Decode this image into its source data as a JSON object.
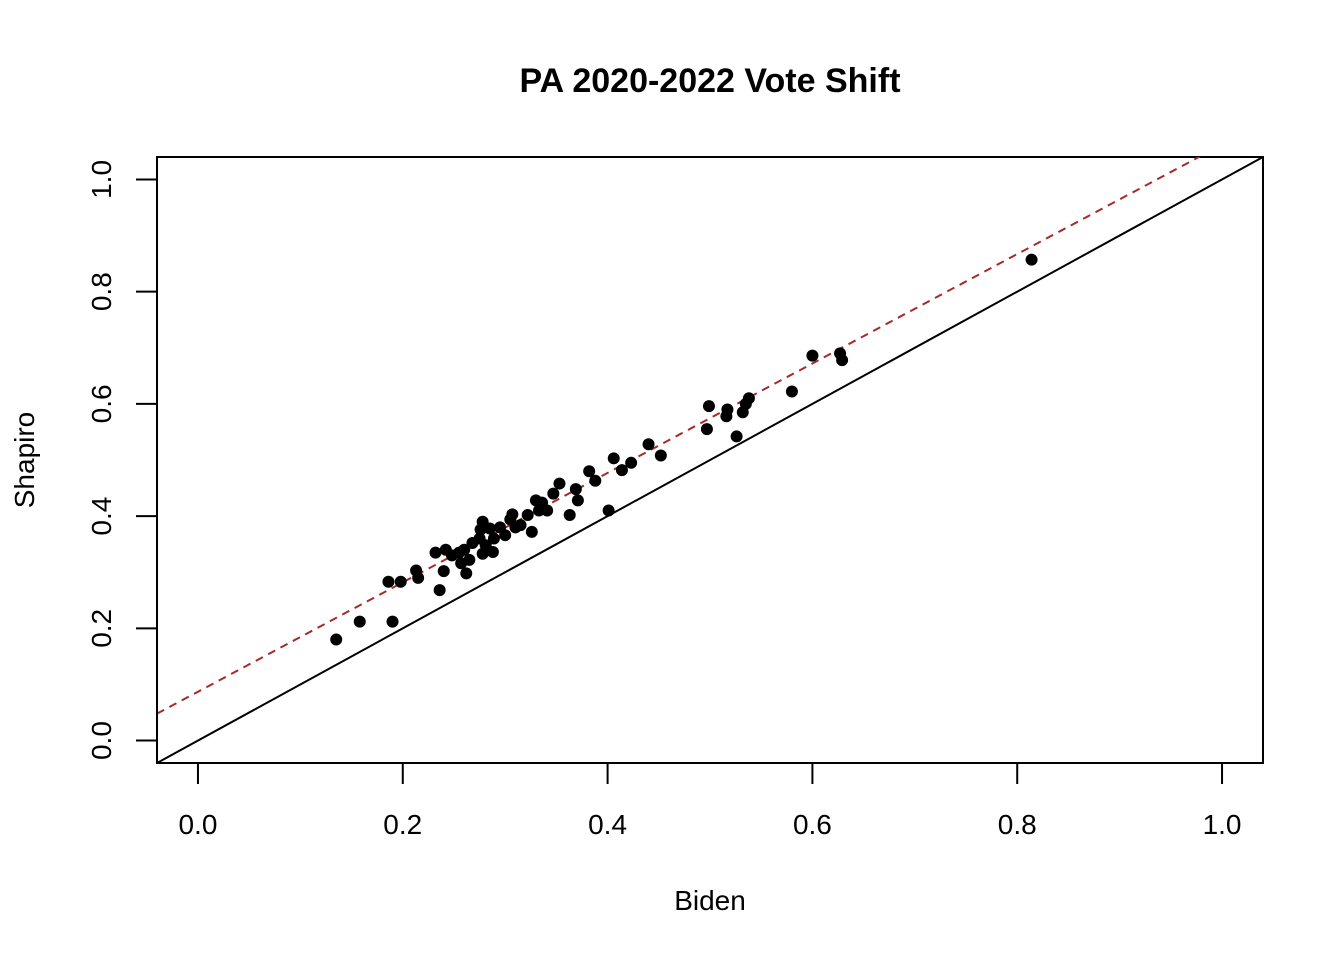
{
  "chart_data": {
    "type": "scatter",
    "title": "PA 2020-2022 Vote Shift",
    "xlabel": "Biden",
    "ylabel": "Shapiro",
    "xlim": [
      -0.04,
      1.04
    ],
    "ylim": [
      -0.04,
      1.04
    ],
    "xticks": [
      "0.0",
      "0.2",
      "0.4",
      "0.6",
      "0.8",
      "1.0"
    ],
    "yticks": [
      "0.0",
      "0.2",
      "0.4",
      "0.6",
      "0.8",
      "1.0"
    ],
    "grid": false,
    "legend": "none",
    "points": [
      [
        0.135,
        0.18
      ],
      [
        0.158,
        0.212
      ],
      [
        0.186,
        0.283
      ],
      [
        0.19,
        0.212
      ],
      [
        0.198,
        0.283
      ],
      [
        0.213,
        0.303
      ],
      [
        0.215,
        0.29
      ],
      [
        0.232,
        0.335
      ],
      [
        0.236,
        0.268
      ],
      [
        0.24,
        0.302
      ],
      [
        0.242,
        0.34
      ],
      [
        0.248,
        0.33
      ],
      [
        0.255,
        0.335
      ],
      [
        0.257,
        0.316
      ],
      [
        0.26,
        0.34
      ],
      [
        0.262,
        0.298
      ],
      [
        0.265,
        0.322
      ],
      [
        0.268,
        0.352
      ],
      [
        0.275,
        0.36
      ],
      [
        0.276,
        0.376
      ],
      [
        0.278,
        0.39
      ],
      [
        0.278,
        0.333
      ],
      [
        0.281,
        0.348
      ],
      [
        0.285,
        0.378
      ],
      [
        0.288,
        0.336
      ],
      [
        0.289,
        0.36
      ],
      [
        0.295,
        0.38
      ],
      [
        0.3,
        0.366
      ],
      [
        0.305,
        0.394
      ],
      [
        0.307,
        0.403
      ],
      [
        0.31,
        0.38
      ],
      [
        0.315,
        0.384
      ],
      [
        0.322,
        0.402
      ],
      [
        0.326,
        0.372
      ],
      [
        0.33,
        0.428
      ],
      [
        0.333,
        0.41
      ],
      [
        0.336,
        0.424
      ],
      [
        0.341,
        0.41
      ],
      [
        0.347,
        0.44
      ],
      [
        0.353,
        0.458
      ],
      [
        0.363,
        0.402
      ],
      [
        0.369,
        0.448
      ],
      [
        0.371,
        0.428
      ],
      [
        0.382,
        0.48
      ],
      [
        0.388,
        0.463
      ],
      [
        0.401,
        0.41
      ],
      [
        0.406,
        0.503
      ],
      [
        0.414,
        0.482
      ],
      [
        0.423,
        0.495
      ],
      [
        0.44,
        0.528
      ],
      [
        0.452,
        0.508
      ],
      [
        0.497,
        0.555
      ],
      [
        0.499,
        0.596
      ],
      [
        0.516,
        0.578
      ],
      [
        0.517,
        0.59
      ],
      [
        0.526,
        0.542
      ],
      [
        0.532,
        0.585
      ],
      [
        0.535,
        0.6
      ],
      [
        0.538,
        0.61
      ],
      [
        0.58,
        0.622
      ],
      [
        0.6,
        0.686
      ],
      [
        0.627,
        0.69
      ],
      [
        0.629,
        0.678
      ],
      [
        0.814,
        0.857
      ]
    ],
    "lines": [
      {
        "kind": "identity",
        "intercept": 0.0,
        "slope": 1.0,
        "style": "solid",
        "color": "#000000"
      },
      {
        "kind": "fit",
        "intercept": 0.087,
        "slope": 0.975,
        "style": "dashed",
        "color": "#a52a2a"
      }
    ],
    "point_color": "#000000"
  }
}
